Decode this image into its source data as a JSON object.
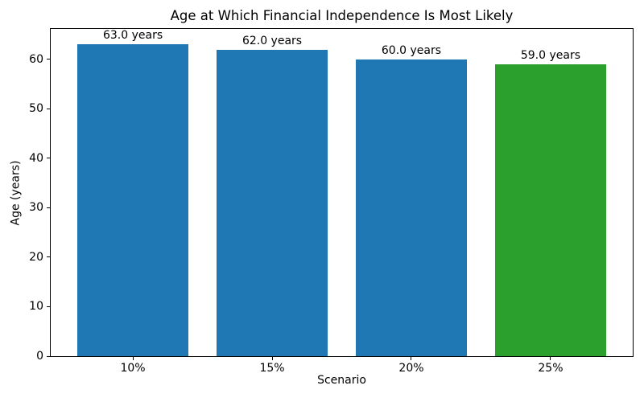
{
  "chart_data": {
    "type": "bar",
    "title": "Age at Which Financial Independence Is Most Likely",
    "xlabel": "Scenario",
    "ylabel": "Age (years)",
    "categories": [
      "10%",
      "15%",
      "20%",
      "25%"
    ],
    "values": [
      63.0,
      62.0,
      60.0,
      59.0
    ],
    "bar_labels": [
      "63.0 years",
      "62.0 years",
      "60.0 years",
      "59.0 years"
    ],
    "bar_colors": [
      "#1f77b4",
      "#1f77b4",
      "#1f77b4",
      "#2ca02c"
    ],
    "default_bar_color": "#1f77b4",
    "highlight_color": "#2ca02c",
    "yticks": [
      0,
      10,
      20,
      30,
      40,
      50,
      60
    ],
    "ylim": [
      0,
      66.15
    ],
    "bar_width_fraction": 0.8,
    "grid": false,
    "legend_position": "none",
    "spine_color": "#000000",
    "text_color": "#000000",
    "background_color": "#ffffff"
  }
}
